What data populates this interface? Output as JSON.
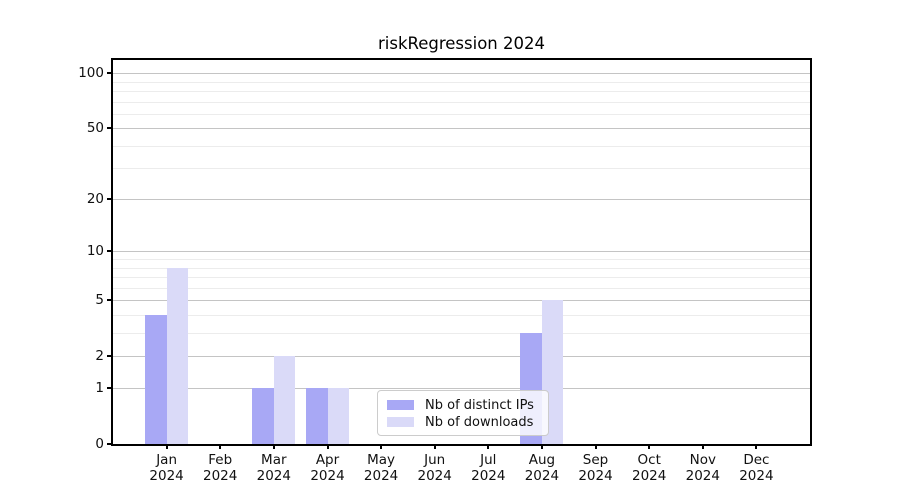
{
  "title": "riskRegression 2024",
  "legend": {
    "items": [
      {
        "label": "Nb of distinct IPs"
      },
      {
        "label": "Nb of downloads"
      }
    ]
  },
  "colors": {
    "distinct_ips": "#a8a8f5",
    "downloads": "#dadaf8",
    "grid_major": "#c4c4c4",
    "grid_minor": "#ececec",
    "axis": "#000000"
  },
  "chart_data": {
    "type": "bar",
    "title": "riskRegression 2024",
    "xlabel": "",
    "ylabel": "",
    "scale": "log1p",
    "categories": [
      "Jan 2024",
      "Feb 2024",
      "Mar 2024",
      "Apr 2024",
      "May 2024",
      "Jun 2024",
      "Jul 2024",
      "Aug 2024",
      "Sep 2024",
      "Oct 2024",
      "Nov 2024",
      "Dec 2024"
    ],
    "series": [
      {
        "name": "Nb of distinct IPs",
        "color": "#a8a8f5",
        "values": [
          4,
          0,
          1,
          1,
          0,
          0,
          0,
          3,
          0,
          0,
          0,
          0
        ]
      },
      {
        "name": "Nb of downloads",
        "color": "#dadaf8",
        "values": [
          8,
          0,
          2,
          1,
          0,
          0,
          0,
          5,
          0,
          0,
          0,
          0
        ]
      }
    ],
    "y_ticks": [
      0,
      1,
      2,
      5,
      10,
      20,
      50,
      100
    ],
    "y_minor_ticks": [
      3,
      4,
      6,
      7,
      8,
      9,
      30,
      40,
      60,
      70,
      80,
      90
    ],
    "ylim": [
      0,
      118
    ],
    "grid": "on",
    "legend_position": "lower-center-inside"
  }
}
